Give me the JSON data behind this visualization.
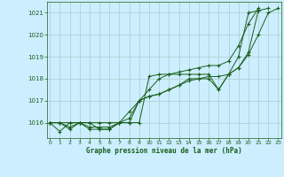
{
  "bg_color": "#cceeff",
  "grid_color": "#aacccc",
  "line_color": "#1a5e1a",
  "marker_color": "#1a5e1a",
  "xlabel": "Graphe pression niveau de la mer (hPa)",
  "xlabel_color": "#1a5e1a",
  "ylabel_color": "#1a5e1a",
  "xlim": [
    -0.3,
    23.3
  ],
  "ylim": [
    1015.3,
    1021.5
  ],
  "yticks": [
    1016,
    1017,
    1018,
    1019,
    1020,
    1021
  ],
  "xticks": [
    0,
    1,
    2,
    3,
    4,
    5,
    6,
    7,
    8,
    9,
    10,
    11,
    12,
    13,
    14,
    15,
    16,
    17,
    18,
    19,
    20,
    21,
    22,
    23
  ],
  "series": [
    [
      1016.0,
      1016.0,
      1015.7,
      1016.0,
      1016.0,
      1015.7,
      1015.7,
      1016.0,
      1016.0,
      1016.0,
      1018.1,
      1018.2,
      1018.2,
      1018.2,
      1018.2,
      1018.2,
      1018.2,
      1017.5,
      1018.2,
      1019.0,
      1021.0,
      1021.1
    ],
    [
      1016.0,
      1015.6,
      1016.0,
      1016.0,
      1015.7,
      1015.7,
      1015.7,
      1016.0,
      1016.2,
      1017.0,
      1017.2,
      1017.3,
      1017.5,
      1017.7,
      1017.9,
      1018.0,
      1018.1,
      1018.1,
      1018.2,
      1018.5,
      1019.1,
      1020.0,
      1021.0,
      1021.2
    ],
    [
      1016.0,
      1016.0,
      1016.0,
      1016.0,
      1016.0,
      1016.0,
      1016.0,
      1016.0,
      1016.5,
      1017.0,
      1017.5,
      1018.0,
      1018.2,
      1018.3,
      1018.4,
      1018.5,
      1018.6,
      1018.6,
      1018.8,
      1019.5,
      1020.5,
      1021.2
    ],
    [
      1016.0,
      1016.0,
      1015.8,
      1016.0,
      1015.8,
      1015.8,
      1015.8,
      1016.0,
      1016.0,
      1017.0,
      1017.2,
      1017.3,
      1017.5,
      1017.7,
      1018.0,
      1018.0,
      1018.0,
      1017.5,
      1018.2,
      1018.5,
      1019.2,
      1021.1,
      1021.2
    ]
  ],
  "series_x": [
    [
      0,
      1,
      2,
      3,
      4,
      5,
      6,
      7,
      8,
      9,
      10,
      11,
      12,
      13,
      14,
      15,
      16,
      17,
      18,
      19,
      20,
      21
    ],
    [
      0,
      1,
      2,
      3,
      4,
      5,
      6,
      7,
      8,
      9,
      10,
      11,
      12,
      13,
      14,
      15,
      16,
      17,
      18,
      19,
      20,
      21,
      22,
      23
    ],
    [
      0,
      1,
      2,
      3,
      4,
      5,
      6,
      7,
      8,
      9,
      10,
      11,
      12,
      13,
      14,
      15,
      16,
      17,
      18,
      19,
      20,
      21
    ],
    [
      0,
      1,
      2,
      3,
      4,
      5,
      6,
      7,
      8,
      9,
      10,
      11,
      12,
      13,
      14,
      15,
      16,
      17,
      18,
      19,
      20,
      21,
      22
    ]
  ]
}
